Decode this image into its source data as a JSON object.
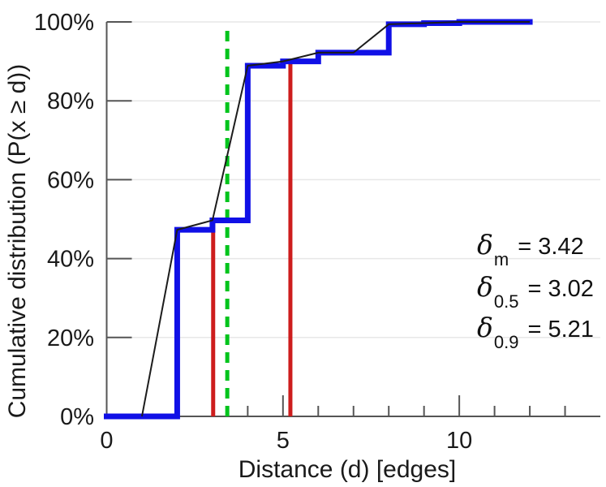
{
  "y_axis": {
    "label": "Cumulative distribution (P(x ≥ d))",
    "range": [
      0,
      100
    ],
    "ticks": [
      0,
      20,
      40,
      60,
      80,
      100
    ],
    "tick_labels": [
      "0%",
      "20%",
      "40%",
      "60%",
      "80%",
      "100%"
    ]
  },
  "x_axis": {
    "label": "Distance (d) [edges]",
    "range": [
      0,
      14
    ],
    "ticks": [
      0,
      5,
      10
    ],
    "tick_labels": [
      "0",
      "5",
      "10"
    ],
    "minor_ticks": [
      3,
      4,
      6,
      7,
      8,
      9,
      11,
      12,
      13
    ]
  },
  "chart_data": {
    "type": "line",
    "title": "",
    "xlabel": "Distance (d) [edges]",
    "ylabel": "Cumulative distribution (P(x ≥ d))",
    "xlim": [
      0,
      14
    ],
    "ylim": [
      0,
      100
    ],
    "grid": "horizontal",
    "legend": "none",
    "x": [
      1,
      2,
      3,
      4,
      5,
      6,
      7,
      8,
      9,
      10,
      12
    ],
    "series": [
      {
        "name": "cumulative-distribution-staircase",
        "style": "step",
        "color": "#1010e6",
        "start": [
          0,
          0
        ],
        "values": [
          0,
          47.3,
          49.7,
          88.9,
          90.0,
          92.2,
          92.2,
          99.4,
          99.7,
          100,
          100
        ]
      },
      {
        "name": "cumulative-distribution-line",
        "style": "linear",
        "color": "#1c1c1c",
        "values": [
          0,
          47.3,
          49.7,
          88.9,
          90.0,
          92.2,
          92.2,
          99.4,
          99.7,
          100,
          100
        ]
      }
    ],
    "markers": [
      {
        "name": "mean-delta-m",
        "x": 3.42,
        "y_top": 99,
        "color": "#00c41c",
        "dashed": true
      },
      {
        "name": "median-delta-0-5",
        "x": 3.02,
        "y_top": 49.7,
        "color": "#cd1d1d",
        "dashed": false
      },
      {
        "name": "p90-delta-0-9",
        "x": 5.21,
        "y_top": 90,
        "color": "#cd1d1d",
        "dashed": false
      }
    ]
  },
  "annotations": [
    {
      "symbol": "δ",
      "sub": "m",
      "eq": "= 3.42"
    },
    {
      "symbol": "δ",
      "sub": "0.5",
      "eq": "= 3.02"
    },
    {
      "symbol": "δ",
      "sub": "0.9",
      "eq": "= 5.21"
    }
  ],
  "colors": {
    "staircase": "#1010e6",
    "line": "#1c1c1c",
    "marker_red": "#cd1d1d",
    "marker_green": "#00c41c",
    "grid": "#e7e7e7",
    "axis": "#555555",
    "text": "#1a1a1a"
  }
}
